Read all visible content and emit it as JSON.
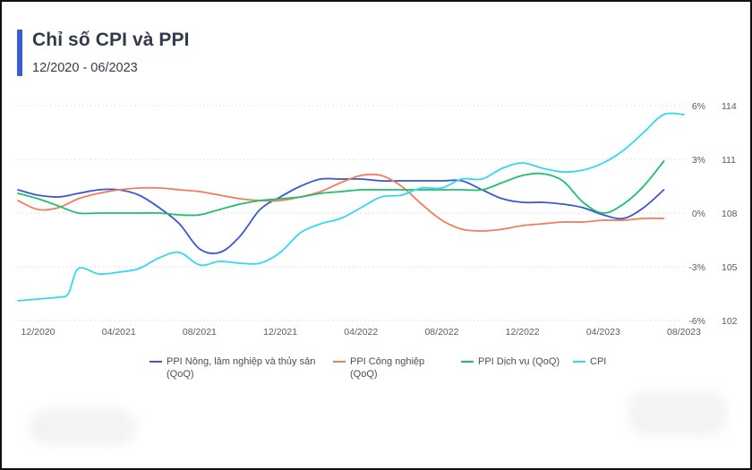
{
  "header": {
    "title": "Chỉ số CPI và PPI",
    "subtitle": "12/2020 - 06/2023"
  },
  "chart_data": {
    "type": "line",
    "title": "Chỉ số CPI và PPI",
    "subtitle": "12/2020 - 06/2023",
    "x_tick_labels": [
      "12/2020",
      "04/2021",
      "08/2021",
      "12/2021",
      "04/2022",
      "08/2022",
      "12/2022",
      "04/2023",
      "08/2023"
    ],
    "y_left": {
      "ticks": [
        "6%",
        "3%",
        "0%",
        "-3%",
        "-6%"
      ],
      "range": [
        -6,
        6
      ],
      "unit": "%"
    },
    "y_right": {
      "ticks": [
        "114",
        "111",
        "108",
        "105",
        "102"
      ],
      "range": [
        102,
        114
      ]
    },
    "grid": "horizontal dotted",
    "legend_position": "bottom",
    "x_range_months": [
      -1,
      32
    ],
    "series": [
      {
        "name": "PPI Nông, lâm nghiệp và thủy sản (QoQ)",
        "axis": "left",
        "color": "#3b55d9",
        "x": [
          -1,
          0,
          1,
          2,
          3,
          4,
          5,
          6,
          7,
          8,
          9,
          10,
          11,
          12,
          13,
          14,
          15,
          16,
          17,
          18,
          19,
          20,
          21,
          22,
          23,
          24,
          25,
          26,
          27,
          28,
          29,
          30,
          31
        ],
        "values": [
          1.3,
          1.0,
          0.9,
          1.1,
          1.3,
          1.3,
          1.0,
          0.3,
          -0.6,
          -2.0,
          -2.2,
          -1.3,
          0.2,
          0.9,
          1.5,
          1.9,
          1.9,
          1.9,
          1.8,
          1.8,
          1.8,
          1.8,
          1.8,
          1.3,
          0.8,
          0.6,
          0.6,
          0.5,
          0.3,
          -0.1,
          -0.3,
          0.3,
          1.3
        ]
      },
      {
        "name": "PPI Công nghiệp (QoQ)",
        "axis": "left",
        "color": "#f47c5c",
        "x": [
          -1,
          0,
          1,
          2,
          3,
          4,
          5,
          6,
          7,
          8,
          9,
          10,
          11,
          12,
          13,
          14,
          15,
          16,
          17,
          18,
          19,
          20,
          21,
          22,
          23,
          24,
          25,
          26,
          27,
          28,
          29,
          30,
          31
        ],
        "values": [
          0.7,
          0.2,
          0.3,
          0.8,
          1.1,
          1.3,
          1.4,
          1.4,
          1.3,
          1.2,
          1.0,
          0.8,
          0.7,
          0.7,
          0.9,
          1.2,
          1.7,
          2.1,
          2.1,
          1.5,
          0.5,
          -0.4,
          -0.9,
          -1.0,
          -0.9,
          -0.7,
          -0.6,
          -0.5,
          -0.5,
          -0.4,
          -0.4,
          -0.3,
          -0.3
        ]
      },
      {
        "name": "PPI Dịch vụ (QoQ)",
        "axis": "left",
        "color": "#1ec16b",
        "x": [
          -1,
          0,
          1,
          2,
          3,
          4,
          5,
          6,
          7,
          8,
          9,
          10,
          11,
          12,
          13,
          14,
          15,
          16,
          17,
          18,
          19,
          20,
          21,
          22,
          23,
          24,
          25,
          26,
          27,
          28,
          29,
          30,
          31
        ],
        "values": [
          1.1,
          0.8,
          0.4,
          0.0,
          0.0,
          0.0,
          0.0,
          0.0,
          -0.1,
          -0.1,
          0.2,
          0.5,
          0.7,
          0.8,
          0.9,
          1.1,
          1.2,
          1.3,
          1.3,
          1.3,
          1.3,
          1.3,
          1.3,
          1.3,
          1.7,
          2.1,
          2.2,
          1.8,
          0.6,
          0.0,
          0.5,
          1.5,
          2.9
        ]
      },
      {
        "name": "CPI",
        "axis": "right",
        "color": "#35d7ef",
        "x": [
          -1,
          0,
          1,
          1.5,
          2,
          3,
          4,
          5,
          6,
          7,
          8,
          9,
          10,
          11,
          12,
          13,
          14,
          15,
          16,
          17,
          18,
          19,
          20,
          21,
          22,
          23,
          24,
          25,
          26,
          27,
          28,
          29,
          30,
          31,
          32
        ],
        "values": [
          103.1,
          103.2,
          103.3,
          103.5,
          104.9,
          104.6,
          104.7,
          104.9,
          105.5,
          105.8,
          105.1,
          105.3,
          105.2,
          105.2,
          105.8,
          106.9,
          107.4,
          107.7,
          108.3,
          108.9,
          109.0,
          109.4,
          109.4,
          109.9,
          109.9,
          110.5,
          110.8,
          110.5,
          110.3,
          110.4,
          110.8,
          111.5,
          112.5,
          113.5,
          113.5
        ]
      }
    ]
  }
}
